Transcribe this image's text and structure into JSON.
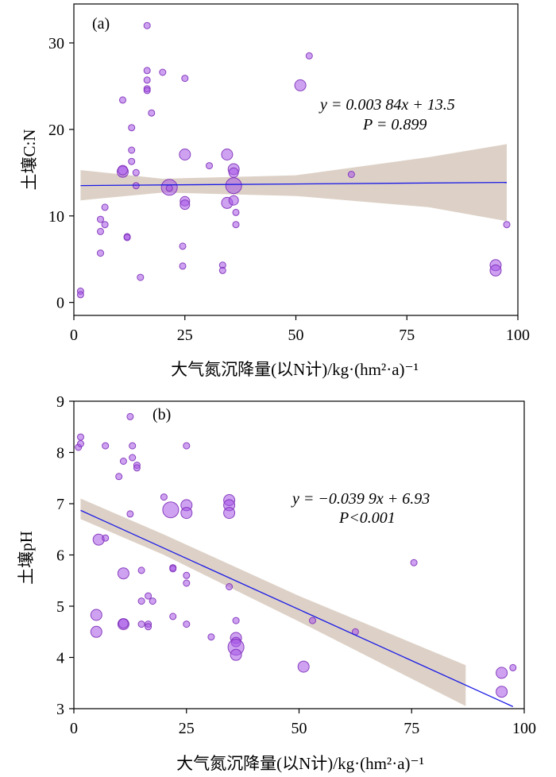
{
  "chart_data": [
    {
      "type": "scatter",
      "panel_label": "(a)",
      "xlabel": "大气氮沉降量(以N计)/kg·(hm²·a)⁻¹",
      "ylabel": "土壤C:N",
      "xlim": [
        0,
        100
      ],
      "ylim": [
        -1.5,
        34.5
      ],
      "xticks": [
        "0",
        "25",
        "50",
        "75",
        "100"
      ],
      "yticks": [
        "0",
        "10",
        "20",
        "30"
      ],
      "grid": false,
      "equation": "y = 0.003 84x + 13.5",
      "p_text": "P = 0.899",
      "regression": {
        "intercept": 13.5,
        "slope": 0.00384,
        "x_range": [
          1.5,
          97.5
        ]
      },
      "confidence_band": {
        "x": [
          1.5,
          20,
          50,
          80,
          97.5
        ],
        "lower": [
          11.8,
          12.7,
          12.3,
          11.0,
          9.4
        ],
        "upper": [
          15.3,
          14.3,
          14.7,
          16.8,
          18.3
        ]
      },
      "colors": {
        "line": "#1a1ae6",
        "band": "#d7c9bd",
        "point_fill": "#a656e6",
        "point_stroke": "#7d2fb8"
      },
      "points": [
        {
          "x": 1.5,
          "y": 1.3,
          "s": 4
        },
        {
          "x": 1.5,
          "y": 0.9,
          "s": 4
        },
        {
          "x": 6.0,
          "y": 9.6,
          "s": 4
        },
        {
          "x": 6.0,
          "y": 8.2,
          "s": 4
        },
        {
          "x": 6.0,
          "y": 5.7,
          "s": 4
        },
        {
          "x": 7.0,
          "y": 11.0,
          "s": 4
        },
        {
          "x": 7.0,
          "y": 9.0,
          "s": 4
        },
        {
          "x": 11.0,
          "y": 23.4,
          "s": 4
        },
        {
          "x": 11.0,
          "y": 15.1,
          "s": 7
        },
        {
          "x": 11.0,
          "y": 15.3,
          "s": 6
        },
        {
          "x": 12.0,
          "y": 7.6,
          "s": 4
        },
        {
          "x": 12.0,
          "y": 7.5,
          "s": 4
        },
        {
          "x": 13.0,
          "y": 20.2,
          "s": 4
        },
        {
          "x": 13.0,
          "y": 17.6,
          "s": 4
        },
        {
          "x": 13.0,
          "y": 16.3,
          "s": 4
        },
        {
          "x": 14.0,
          "y": 15.0,
          "s": 4
        },
        {
          "x": 14.0,
          "y": 13.5,
          "s": 4
        },
        {
          "x": 15.0,
          "y": 2.9,
          "s": 4
        },
        {
          "x": 16.5,
          "y": 32.0,
          "s": 4
        },
        {
          "x": 16.5,
          "y": 26.8,
          "s": 4
        },
        {
          "x": 16.5,
          "y": 25.7,
          "s": 4
        },
        {
          "x": 16.5,
          "y": 24.7,
          "s": 4
        },
        {
          "x": 16.5,
          "y": 24.5,
          "s": 4
        },
        {
          "x": 17.5,
          "y": 21.9,
          "s": 4
        },
        {
          "x": 20.0,
          "y": 26.6,
          "s": 4
        },
        {
          "x": 21.5,
          "y": 13.3,
          "s": 10
        },
        {
          "x": 21.5,
          "y": 13.2,
          "s": 4
        },
        {
          "x": 24.5,
          "y": 6.5,
          "s": 4
        },
        {
          "x": 24.5,
          "y": 4.2,
          "s": 4
        },
        {
          "x": 25.0,
          "y": 25.9,
          "s": 4
        },
        {
          "x": 25.0,
          "y": 17.1,
          "s": 7
        },
        {
          "x": 25.0,
          "y": 11.7,
          "s": 6
        },
        {
          "x": 25.0,
          "y": 11.3,
          "s": 6
        },
        {
          "x": 30.5,
          "y": 15.8,
          "s": 4
        },
        {
          "x": 33.5,
          "y": 4.3,
          "s": 4
        },
        {
          "x": 33.5,
          "y": 3.7,
          "s": 4
        },
        {
          "x": 34.5,
          "y": 17.1,
          "s": 7
        },
        {
          "x": 34.5,
          "y": 11.5,
          "s": 7
        },
        {
          "x": 36.0,
          "y": 15.4,
          "s": 7
        },
        {
          "x": 36.0,
          "y": 15.0,
          "s": 6
        },
        {
          "x": 36.0,
          "y": 13.5,
          "s": 10
        },
        {
          "x": 36.0,
          "y": 11.8,
          "s": 6
        },
        {
          "x": 36.5,
          "y": 10.4,
          "s": 4
        },
        {
          "x": 36.5,
          "y": 9.0,
          "s": 4
        },
        {
          "x": 51.0,
          "y": 25.1,
          "s": 7
        },
        {
          "x": 53.0,
          "y": 28.5,
          "s": 4
        },
        {
          "x": 62.5,
          "y": 14.8,
          "s": 4
        },
        {
          "x": 95.0,
          "y": 4.3,
          "s": 7
        },
        {
          "x": 95.0,
          "y": 3.7,
          "s": 7
        },
        {
          "x": 97.5,
          "y": 9.0,
          "s": 4
        }
      ]
    },
    {
      "type": "scatter",
      "panel_label": "(b)",
      "xlabel": "大气氮沉降量(以N计)/kg·(hm²·a)⁻¹",
      "ylabel": "土壤pH",
      "xlim": [
        0,
        100
      ],
      "ylim": [
        3,
        9
      ],
      "xticks": [
        "0",
        "25",
        "50",
        "75",
        "100"
      ],
      "yticks": [
        "3",
        "4",
        "5",
        "6",
        "7",
        "8",
        "9"
      ],
      "grid": false,
      "equation": "y = −0.039 9x + 6.93",
      "p_text": "P<0.001",
      "regression": {
        "intercept": 6.93,
        "slope": -0.0399,
        "x_range": [
          1.5,
          97.5
        ]
      },
      "confidence_band": {
        "x": [
          1.5,
          20,
          50,
          87
        ],
        "lower": [
          6.7,
          6.0,
          4.7,
          3.05
        ],
        "upper": [
          7.1,
          6.4,
          5.2,
          3.85
        ]
      },
      "colors": {
        "line": "#1a1ae6",
        "band": "#d7c9bd",
        "point_fill": "#a656e6",
        "point_stroke": "#7d2fb8"
      },
      "points": [
        {
          "x": 1.0,
          "y": 8.1,
          "s": 4
        },
        {
          "x": 1.5,
          "y": 8.3,
          "s": 4
        },
        {
          "x": 1.5,
          "y": 8.17,
          "s": 4
        },
        {
          "x": 5.5,
          "y": 6.3,
          "s": 7
        },
        {
          "x": 5.0,
          "y": 4.83,
          "s": 7
        },
        {
          "x": 5.0,
          "y": 4.5,
          "s": 7
        },
        {
          "x": 7.0,
          "y": 6.33,
          "s": 4
        },
        {
          "x": 7.0,
          "y": 8.13,
          "s": 4
        },
        {
          "x": 10.0,
          "y": 7.53,
          "s": 4
        },
        {
          "x": 11.0,
          "y": 7.83,
          "s": 4
        },
        {
          "x": 11.0,
          "y": 5.64,
          "s": 7
        },
        {
          "x": 11.0,
          "y": 4.65,
          "s": 7
        },
        {
          "x": 11.0,
          "y": 4.66,
          "s": 6
        },
        {
          "x": 12.5,
          "y": 8.7,
          "s": 4
        },
        {
          "x": 12.5,
          "y": 6.8,
          "s": 4
        },
        {
          "x": 13.0,
          "y": 8.13,
          "s": 4
        },
        {
          "x": 13.0,
          "y": 7.9,
          "s": 4
        },
        {
          "x": 14.0,
          "y": 7.75,
          "s": 4
        },
        {
          "x": 14.0,
          "y": 7.7,
          "s": 4
        },
        {
          "x": 15.0,
          "y": 5.7,
          "s": 4
        },
        {
          "x": 15.0,
          "y": 5.1,
          "s": 4
        },
        {
          "x": 15.0,
          "y": 4.65,
          "s": 4
        },
        {
          "x": 16.5,
          "y": 5.2,
          "s": 4
        },
        {
          "x": 16.5,
          "y": 4.65,
          "s": 4
        },
        {
          "x": 16.5,
          "y": 4.6,
          "s": 4
        },
        {
          "x": 17.5,
          "y": 5.1,
          "s": 4
        },
        {
          "x": 20.0,
          "y": 7.13,
          "s": 4
        },
        {
          "x": 21.5,
          "y": 6.88,
          "s": 10
        },
        {
          "x": 22.0,
          "y": 5.75,
          "s": 4
        },
        {
          "x": 22.0,
          "y": 5.73,
          "s": 4
        },
        {
          "x": 22.0,
          "y": 4.8,
          "s": 4
        },
        {
          "x": 25.0,
          "y": 8.13,
          "s": 4
        },
        {
          "x": 25.0,
          "y": 6.97,
          "s": 7
        },
        {
          "x": 25.0,
          "y": 6.82,
          "s": 7
        },
        {
          "x": 25.0,
          "y": 5.6,
          "s": 4
        },
        {
          "x": 25.0,
          "y": 5.45,
          "s": 4
        },
        {
          "x": 25.0,
          "y": 4.65,
          "s": 4
        },
        {
          "x": 30.5,
          "y": 4.4,
          "s": 4
        },
        {
          "x": 34.5,
          "y": 7.07,
          "s": 7
        },
        {
          "x": 34.5,
          "y": 6.97,
          "s": 7
        },
        {
          "x": 34.5,
          "y": 6.82,
          "s": 7
        },
        {
          "x": 34.5,
          "y": 5.38,
          "s": 4
        },
        {
          "x": 36.0,
          "y": 4.72,
          "s": 4
        },
        {
          "x": 36.0,
          "y": 4.38,
          "s": 7
        },
        {
          "x": 36.0,
          "y": 4.3,
          "s": 6
        },
        {
          "x": 36.0,
          "y": 4.2,
          "s": 10
        },
        {
          "x": 36.0,
          "y": 4.05,
          "s": 7
        },
        {
          "x": 51.0,
          "y": 3.82,
          "s": 7
        },
        {
          "x": 53.0,
          "y": 4.72,
          "s": 4
        },
        {
          "x": 62.5,
          "y": 4.5,
          "s": 4
        },
        {
          "x": 75.5,
          "y": 5.85,
          "s": 4
        },
        {
          "x": 95.0,
          "y": 3.7,
          "s": 7
        },
        {
          "x": 95.0,
          "y": 3.33,
          "s": 7
        },
        {
          "x": 97.5,
          "y": 3.8,
          "s": 4
        }
      ]
    }
  ]
}
